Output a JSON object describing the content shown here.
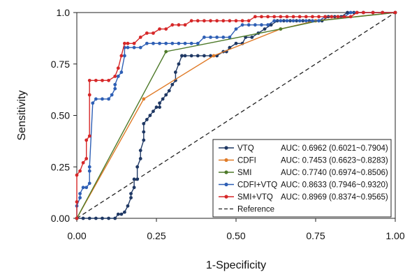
{
  "chart_data": {
    "type": "line",
    "title": "",
    "xlabel": "1-Specificity",
    "ylabel": "Sensitivity",
    "xlim": [
      0,
      1
    ],
    "ylim": [
      0,
      1
    ],
    "xticks": [
      "0.00",
      "0.25",
      "0.50",
      "0.75",
      "1.00"
    ],
    "yticks": [
      "0.00",
      "0.25",
      "0.50",
      "0.75",
      "1.0"
    ],
    "legend_position": "bottom-right",
    "series": [
      {
        "name": "VTQ",
        "auc_label": "AUC: 0.6962 (0.6021~0.7904)",
        "color": "#1f3864",
        "x": [
          0,
          0.02,
          0.04,
          0.06,
          0.08,
          0.1,
          0.12,
          0.13,
          0.14,
          0.15,
          0.16,
          0.17,
          0.17,
          0.18,
          0.18,
          0.19,
          0.19,
          0.2,
          0.2,
          0.21,
          0.21,
          0.21,
          0.22,
          0.23,
          0.24,
          0.25,
          0.26,
          0.26,
          0.27,
          0.28,
          0.29,
          0.3,
          0.31,
          0.31,
          0.32,
          0.33,
          0.33,
          0.34,
          0.36,
          0.38,
          0.4,
          0.42,
          0.44,
          0.46,
          0.47,
          0.48,
          0.5,
          0.52,
          0.53,
          0.55,
          0.57,
          0.59,
          0.61,
          0.63,
          0.65,
          0.67,
          0.69,
          0.71,
          0.73,
          0.75,
          0.77,
          0.79,
          0.81,
          0.83,
          0.85,
          0.87,
          0.9,
          0.93,
          0.96,
          1.0
        ],
        "y": [
          0,
          0,
          0,
          0,
          0,
          0,
          0,
          0.02,
          0.02,
          0.03,
          0.06,
          0.1,
          0.12,
          0.15,
          0.19,
          0.19,
          0.25,
          0.29,
          0.33,
          0.38,
          0.42,
          0.46,
          0.48,
          0.5,
          0.52,
          0.54,
          0.54,
          0.56,
          0.58,
          0.6,
          0.62,
          0.65,
          0.67,
          0.71,
          0.75,
          0.79,
          0.79,
          0.79,
          0.79,
          0.79,
          0.79,
          0.79,
          0.79,
          0.81,
          0.81,
          0.83,
          0.85,
          0.85,
          0.88,
          0.88,
          0.9,
          0.92,
          0.94,
          0.96,
          0.96,
          0.96,
          0.96,
          0.96,
          0.96,
          0.96,
          0.96,
          0.98,
          0.98,
          0.98,
          1.0,
          1.0,
          1.0,
          1.0,
          1.0,
          1.0
        ]
      },
      {
        "name": "CDFI",
        "auc_label": "AUC: 0.7453 (0.6623~0.8283)",
        "color": "#e07b28",
        "x": [
          0,
          0.21,
          0.43,
          0.64,
          0.75,
          1.0
        ],
        "y": [
          0,
          0.58,
          0.79,
          0.92,
          0.96,
          1.0
        ]
      },
      {
        "name": "SMI",
        "auc_label": "AUC: 0.7740 (0.6974~0.8506)",
        "color": "#4e7a2a",
        "x": [
          0,
          0.28,
          0.64,
          0.76,
          1.0
        ],
        "y": [
          0,
          0.81,
          0.92,
          0.96,
          1.0
        ]
      },
      {
        "name": "CDFI+VTQ",
        "auc_label": "AUC: 0.8633 (0.7946~0.9320)",
        "color": "#2e5fb5",
        "x": [
          0,
          0,
          0.01,
          0.01,
          0.02,
          0.03,
          0.04,
          0.04,
          0.04,
          0.05,
          0.06,
          0.08,
          0.1,
          0.11,
          0.12,
          0.12,
          0.13,
          0.14,
          0.15,
          0.15,
          0.16,
          0.18,
          0.2,
          0.22,
          0.24,
          0.26,
          0.28,
          0.3,
          0.32,
          0.34,
          0.36,
          0.38,
          0.4,
          0.42,
          0.44,
          0.46,
          0.48,
          0.5,
          0.52,
          0.54,
          0.56,
          0.58,
          0.6,
          0.62,
          0.64,
          0.66,
          0.68,
          0.7,
          0.72,
          0.74,
          0.76,
          0.78,
          0.8,
          0.82,
          0.84,
          0.86,
          0.88,
          0.9,
          0.93,
          0.96,
          1.0
        ],
        "y": [
          0,
          0.06,
          0.1,
          0.12,
          0.15,
          0.15,
          0.17,
          0.23,
          0.25,
          0.56,
          0.58,
          0.58,
          0.58,
          0.6,
          0.63,
          0.65,
          0.69,
          0.71,
          0.79,
          0.83,
          0.83,
          0.83,
          0.83,
          0.85,
          0.85,
          0.85,
          0.85,
          0.85,
          0.85,
          0.85,
          0.85,
          0.85,
          0.88,
          0.88,
          0.88,
          0.88,
          0.88,
          0.92,
          0.94,
          0.94,
          0.94,
          0.94,
          0.94,
          0.96,
          0.96,
          0.96,
          0.96,
          0.96,
          0.96,
          0.96,
          0.96,
          0.98,
          0.98,
          0.98,
          0.98,
          1.0,
          1.0,
          1.0,
          1.0,
          1.0,
          1.0
        ]
      },
      {
        "name": "SMI+VTQ",
        "auc_label": "AUC: 0.8969 (0.8374~0.9565)",
        "color": "#d62728",
        "x": [
          0,
          0,
          0,
          0.01,
          0.02,
          0.03,
          0.03,
          0.04,
          0.04,
          0.04,
          0.06,
          0.08,
          0.1,
          0.12,
          0.13,
          0.14,
          0.15,
          0.16,
          0.18,
          0.2,
          0.22,
          0.24,
          0.26,
          0.28,
          0.3,
          0.32,
          0.34,
          0.36,
          0.38,
          0.4,
          0.42,
          0.44,
          0.46,
          0.48,
          0.5,
          0.52,
          0.54,
          0.56,
          0.58,
          0.6,
          0.62,
          0.64,
          0.66,
          0.68,
          0.7,
          0.72,
          0.74,
          0.76,
          0.78,
          0.8,
          0.82,
          0.84,
          0.86,
          0.88,
          0.9,
          0.93,
          0.96,
          1.0
        ],
        "y": [
          0,
          0.08,
          0.21,
          0.23,
          0.27,
          0.29,
          0.38,
          0.4,
          0.6,
          0.67,
          0.67,
          0.67,
          0.67,
          0.69,
          0.73,
          0.79,
          0.85,
          0.85,
          0.85,
          0.88,
          0.9,
          0.9,
          0.92,
          0.92,
          0.94,
          0.94,
          0.94,
          0.96,
          0.96,
          0.96,
          0.96,
          0.96,
          0.96,
          0.96,
          0.96,
          0.96,
          0.96,
          0.98,
          0.98,
          0.98,
          0.98,
          0.98,
          0.98,
          0.98,
          0.98,
          0.98,
          0.98,
          0.98,
          0.98,
          0.98,
          0.98,
          0.98,
          0.98,
          1.0,
          1.0,
          1.0,
          1.0,
          1.0
        ]
      }
    ],
    "reference": {
      "name": "Reference",
      "x": [
        0,
        1
      ],
      "y": [
        0,
        1
      ],
      "color": "#222222"
    }
  }
}
